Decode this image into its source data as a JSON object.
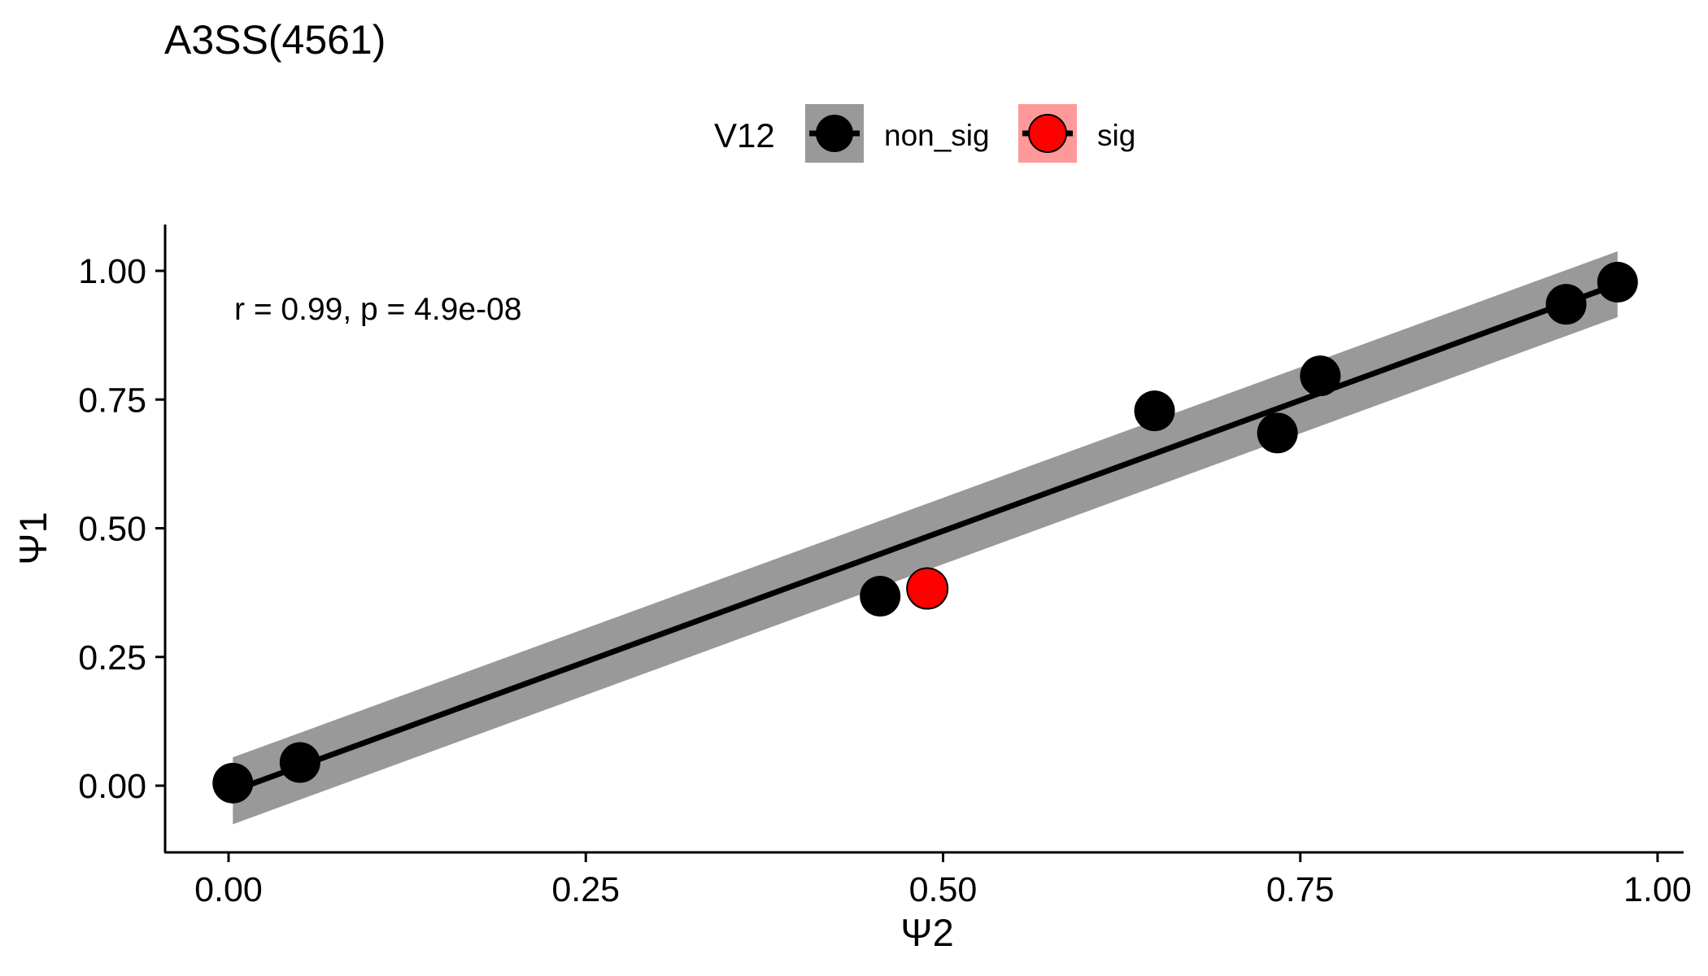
{
  "chart_data": {
    "type": "scatter",
    "title": "A3SS(4561)",
    "xlabel": "Ψ2",
    "ylabel": "Ψ1",
    "xlim": [
      -0.09,
      1.02
    ],
    "ylim": [
      -0.13,
      1.09
    ],
    "x_ticks": [
      0.0,
      0.25,
      0.5,
      0.75,
      1.0
    ],
    "x_tick_labels": [
      "0.00",
      "0.25",
      "0.50",
      "0.75",
      "1.00"
    ],
    "y_ticks": [
      0.0,
      0.25,
      0.5,
      0.75,
      1.0
    ],
    "y_tick_labels": [
      "0.00",
      "0.25",
      "0.50",
      "0.75",
      "1.00"
    ],
    "grid": false,
    "legend": {
      "title": "V12",
      "position": "top",
      "entries": [
        {
          "label": "non_sig",
          "color": "#000000",
          "band_color": "#999999"
        },
        {
          "label": "sig",
          "color": "#ff0000",
          "band_color": "#ff9999"
        }
      ]
    },
    "annotation": "r = 0.99, p = 4.9e-08",
    "series": [
      {
        "name": "non_sig",
        "color": "#000000",
        "points": [
          {
            "x": 0.003,
            "y": 0.005
          },
          {
            "x": 0.05,
            "y": 0.045
          },
          {
            "x": 0.456,
            "y": 0.368
          },
          {
            "x": 0.648,
            "y": 0.728
          },
          {
            "x": 0.734,
            "y": 0.685
          },
          {
            "x": 0.764,
            "y": 0.796
          },
          {
            "x": 0.936,
            "y": 0.935
          },
          {
            "x": 0.972,
            "y": 0.978
          }
        ]
      },
      {
        "name": "sig",
        "color": "#ff0000",
        "points": [
          {
            "x": 0.489,
            "y": 0.383
          }
        ]
      }
    ],
    "regression": {
      "color": "#000000",
      "band_color": "#999999",
      "x_start": 0.003,
      "x_end": 0.972,
      "y_start": -0.01,
      "y_end": 0.974,
      "band_start": [
        -0.075,
        0.055
      ],
      "band_end": [
        0.91,
        1.038
      ]
    }
  }
}
